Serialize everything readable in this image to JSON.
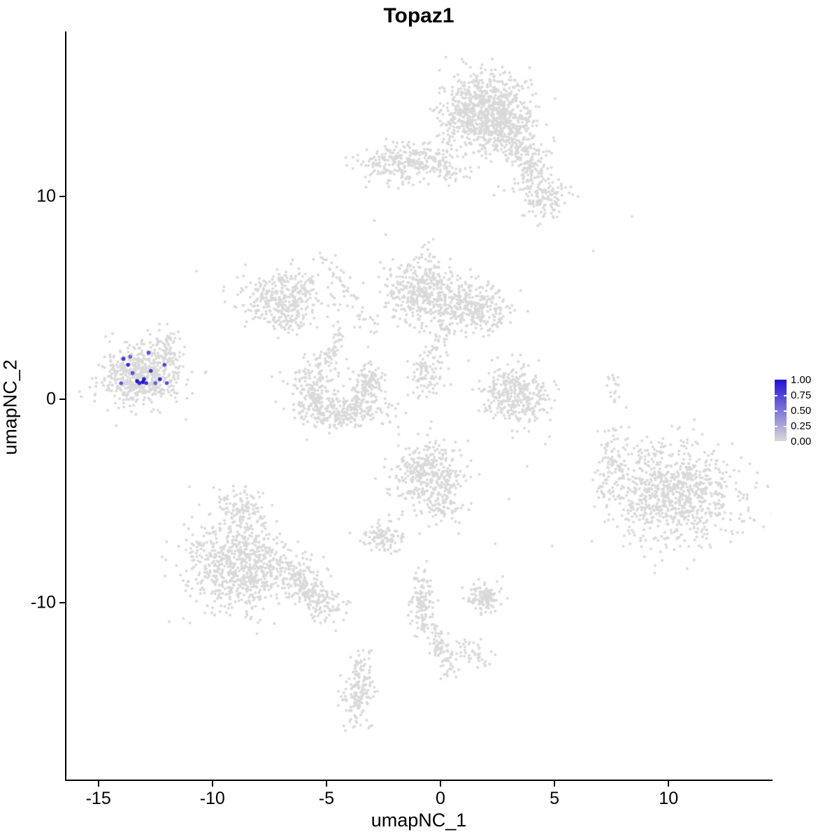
{
  "title": "Topaz1",
  "chart_data": {
    "type": "scatter",
    "title": "Topaz1",
    "xlabel": "umapNC_1",
    "ylabel": "umapNC_2",
    "xlim": [
      -16.4,
      14.5
    ],
    "ylim": [
      -18.7,
      18.1
    ],
    "grid": "off",
    "x_ticks": [
      -15,
      -10,
      -5,
      0,
      5,
      10
    ],
    "y_ticks": [
      -10,
      0,
      10
    ],
    "colors": {
      "low": "#d9d9d9",
      "high": "#2012d4",
      "axis": "#000000"
    },
    "legend": {
      "position": "right",
      "tick_values": [
        1.0,
        0.75,
        0.5,
        0.25,
        0.0
      ],
      "tick_labels": [
        "1.00",
        "0.75",
        "0.50",
        "0.25",
        "0.00"
      ]
    },
    "point_radius_px": 2.0,
    "highlight_radius_px": 2.8,
    "clusters": [
      {
        "cx": 2.0,
        "cy": 14.4,
        "sx": 1.0,
        "sy": 0.85,
        "rot": -20,
        "n": 650
      },
      {
        "cx": 2.9,
        "cy": 13.0,
        "sx": 0.7,
        "sy": 0.6,
        "rot": -30,
        "n": 220
      },
      {
        "cx": 1.0,
        "cy": 13.6,
        "sx": 0.5,
        "sy": 0.8,
        "rot": 0,
        "n": 120
      },
      {
        "cx": 3.9,
        "cy": 11.3,
        "sx": 0.35,
        "sy": 0.8,
        "rot": -35,
        "n": 70
      },
      {
        "cx": 4.55,
        "cy": 9.9,
        "sx": 0.5,
        "sy": 0.55,
        "rot": 0,
        "n": 130
      },
      {
        "cx": -1.5,
        "cy": 11.7,
        "sx": 0.95,
        "sy": 0.5,
        "rot": 5,
        "n": 280
      },
      {
        "cx": 0.4,
        "cy": 11.2,
        "sx": 0.5,
        "sy": 0.3,
        "rot": 0,
        "n": 40
      },
      {
        "cx": -6.9,
        "cy": 5.1,
        "sx": 1.0,
        "sy": 0.6,
        "rot": 10,
        "n": 330
      },
      {
        "cx": -6.7,
        "cy": 3.9,
        "sx": 0.4,
        "sy": 0.4,
        "rot": 0,
        "n": 60
      },
      {
        "cx": -0.8,
        "cy": 5.3,
        "sx": 0.85,
        "sy": 0.85,
        "rot": 0,
        "n": 430
      },
      {
        "cx": 1.4,
        "cy": 4.5,
        "sx": 0.85,
        "sy": 0.6,
        "rot": -15,
        "n": 300
      },
      {
        "cx": -0.6,
        "cy": 1.1,
        "sx": 0.4,
        "sy": 0.45,
        "rot": 0,
        "n": 80
      },
      {
        "cx": -5.6,
        "cy": 0.3,
        "sx": 0.45,
        "sy": 0.8,
        "rot": 15,
        "n": 170
      },
      {
        "cx": -4.3,
        "cy": -0.55,
        "sx": 1.0,
        "sy": 0.4,
        "rot": 0,
        "n": 240
      },
      {
        "cx": -3.15,
        "cy": 0.7,
        "sx": 0.35,
        "sy": 0.6,
        "rot": -10,
        "n": 130
      },
      {
        "cx": -4.9,
        "cy": 1.7,
        "sx": 0.5,
        "sy": 0.4,
        "rot": 0,
        "n": 50
      },
      {
        "cx": -13.2,
        "cy": 1.2,
        "sx": 0.85,
        "sy": 0.75,
        "rot": 0,
        "n": 560
      },
      {
        "cx": -11.9,
        "cy": 2.5,
        "sx": 0.3,
        "sy": 0.55,
        "rot": 20,
        "n": 70
      },
      {
        "cx": 3.3,
        "cy": 0.2,
        "sx": 0.72,
        "sy": 0.7,
        "rot": 0,
        "n": 340
      },
      {
        "cx": 10.3,
        "cy": -4.6,
        "sx": 1.45,
        "sy": 1.3,
        "rot": 0,
        "n": 880
      },
      {
        "cx": 7.5,
        "cy": -3.3,
        "sx": 0.3,
        "sy": 1.0,
        "rot": 0,
        "n": 90
      },
      {
        "cx": 7.6,
        "cy": 0.4,
        "sx": 0.15,
        "sy": 0.55,
        "rot": 0,
        "n": 18
      },
      {
        "cx": -0.5,
        "cy": -3.7,
        "sx": 0.8,
        "sy": 0.85,
        "rot": 0,
        "n": 380
      },
      {
        "cx": 0.1,
        "cy": -5.3,
        "sx": 0.4,
        "sy": 0.4,
        "rot": 0,
        "n": 60
      },
      {
        "cx": -2.6,
        "cy": -6.8,
        "sx": 0.4,
        "sy": 0.35,
        "rot": 0,
        "n": 100
      },
      {
        "cx": -8.8,
        "cy": -8.2,
        "sx": 1.15,
        "sy": 1.05,
        "rot": 0,
        "n": 780
      },
      {
        "cx": -8.8,
        "cy": -5.3,
        "sx": 0.55,
        "sy": 0.5,
        "rot": 0,
        "n": 110
      },
      {
        "cx": -0.8,
        "cy": -9.9,
        "sx": 0.25,
        "sy": 0.85,
        "rot": 0,
        "n": 130
      },
      {
        "cx": 0.0,
        "cy": -12.3,
        "sx": 0.22,
        "sy": 0.7,
        "rot": 15,
        "n": 80
      },
      {
        "cx": 1.95,
        "cy": -9.7,
        "sx": 0.38,
        "sy": 0.35,
        "rot": 0,
        "n": 120
      },
      {
        "cx": -3.6,
        "cy": -14.4,
        "sx": 0.3,
        "sy": 0.8,
        "rot": -10,
        "n": 150
      },
      {
        "cx": 1.4,
        "cy": -12.4,
        "sx": 0.45,
        "sy": 0.4,
        "rot": 0,
        "n": 45
      }
    ],
    "trails": [
      {
        "x1": -5.2,
        "y1": 7.2,
        "x2": -3.0,
        "y2": 3.6,
        "jitter": 0.25,
        "n": 55
      },
      {
        "x1": 0.2,
        "y1": 3.4,
        "x2": -0.6,
        "y2": 1.6,
        "jitter": 0.2,
        "n": 40
      },
      {
        "x1": -6.8,
        "y1": -8.4,
        "x2": -4.7,
        "y2": -10.5,
        "jitter": 0.4,
        "n": 240
      },
      {
        "x1": 3.2,
        "y1": 12.6,
        "x2": 4.3,
        "y2": 10.6,
        "jitter": 0.3,
        "n": 60
      },
      {
        "x1": -4.7,
        "y1": 2.2,
        "x2": -4.5,
        "y2": 3.4,
        "jitter": 0.18,
        "n": 25
      },
      {
        "x1": -3.3,
        "y1": -12.4,
        "x2": -3.6,
        "y2": -13.3,
        "jitter": 0.2,
        "n": 25
      }
    ],
    "strays": [
      [
        6.7,
        7.3
      ],
      [
        8.4,
        9.0
      ],
      [
        -10.7,
        6.3
      ],
      [
        -2.9,
        8.8
      ],
      [
        4.9,
        -7.2
      ],
      [
        3.0,
        -4.9
      ],
      [
        3.8,
        -3.3
      ],
      [
        -2.4,
        8.1
      ],
      [
        0.8,
        -6.6
      ],
      [
        4.6,
        -2.2
      ],
      [
        -11.0,
        -4.3
      ],
      [
        5.3,
        10.6
      ],
      [
        2.4,
        -7.1
      ],
      [
        -1.8,
        -7.4
      ]
    ],
    "highlighted_points": [
      {
        "x": -13.9,
        "y": 2.0,
        "value": 0.8
      },
      {
        "x": -13.7,
        "y": 1.7,
        "value": 0.9
      },
      {
        "x": -13.5,
        "y": 1.3,
        "value": 0.7
      },
      {
        "x": -13.3,
        "y": 0.9,
        "value": 1.0
      },
      {
        "x": -13.2,
        "y": 0.8,
        "value": 0.9
      },
      {
        "x": -13.0,
        "y": 1.0,
        "value": 0.95
      },
      {
        "x": -12.9,
        "y": 0.8,
        "value": 0.85
      },
      {
        "x": -12.8,
        "y": 2.3,
        "value": 0.7
      },
      {
        "x": -12.7,
        "y": 1.4,
        "value": 0.8
      },
      {
        "x": -12.5,
        "y": 0.8,
        "value": 0.6
      },
      {
        "x": -12.1,
        "y": 1.7,
        "value": 0.75
      },
      {
        "x": -12.0,
        "y": 0.8,
        "value": 0.7
      },
      {
        "x": -14.0,
        "y": 0.8,
        "value": 0.65
      },
      {
        "x": -13.6,
        "y": 2.1,
        "value": 0.6
      },
      {
        "x": -12.3,
        "y": 1.0,
        "value": 0.9
      },
      {
        "x": -13.05,
        "y": 0.85,
        "value": 1.0
      }
    ]
  }
}
